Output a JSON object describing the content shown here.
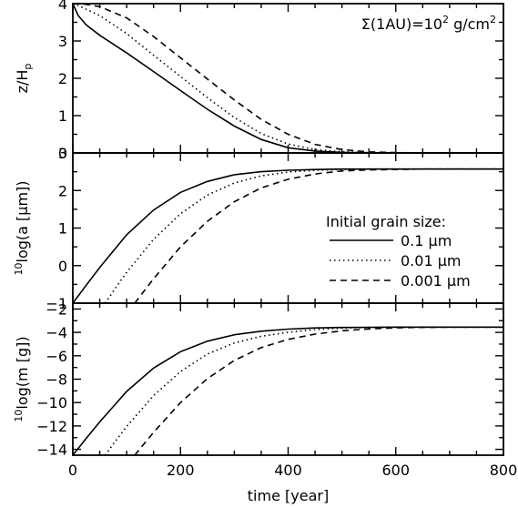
{
  "chart_data": [
    {
      "type": "line",
      "panel": "top",
      "ylabel": "z/H_p",
      "ylabel_main": "z/H",
      "ylabel_sub": "p",
      "xlim": [
        0,
        800
      ],
      "ylim": [
        0,
        4
      ],
      "yticks": [
        0,
        1,
        2,
        3,
        4
      ],
      "xticks": [
        0,
        200,
        400,
        600,
        800
      ],
      "show_xtick_labels": false,
      "annotation": {
        "prefix": "Σ(1AU)=10",
        "exp": "2",
        "mid": " g/cm",
        "unit_exp": "2"
      },
      "series": [
        {
          "name": "0.1 μm",
          "style": "solid",
          "x": [
            0,
            10,
            25,
            50,
            100,
            150,
            200,
            250,
            300,
            350,
            400,
            450,
            500,
            550,
            600,
            650,
            700,
            800
          ],
          "values": [
            4.0,
            3.68,
            3.43,
            3.15,
            2.68,
            2.18,
            1.67,
            1.17,
            0.72,
            0.36,
            0.14,
            0.05,
            0.015,
            0.005,
            0.0,
            0.0,
            0.0,
            0.0
          ]
        },
        {
          "name": "0.01 μm",
          "style": "dotted",
          "x": [
            0,
            10,
            25,
            50,
            100,
            150,
            200,
            250,
            300,
            350,
            400,
            450,
            500,
            550,
            600,
            650,
            700,
            800
          ],
          "values": [
            4.0,
            3.95,
            3.85,
            3.68,
            3.2,
            2.62,
            2.05,
            1.48,
            0.95,
            0.52,
            0.24,
            0.09,
            0.03,
            0.01,
            0.0,
            0.0,
            0.0,
            0.0
          ]
        },
        {
          "name": "0.001 μm",
          "style": "dashed",
          "x": [
            0,
            10,
            25,
            50,
            100,
            150,
            200,
            250,
            300,
            350,
            400,
            450,
            500,
            550,
            600,
            650,
            700,
            800
          ],
          "values": [
            4.0,
            4.0,
            3.98,
            3.92,
            3.62,
            3.12,
            2.55,
            1.98,
            1.42,
            0.9,
            0.5,
            0.23,
            0.09,
            0.03,
            0.01,
            0.0,
            0.0,
            0.0
          ]
        }
      ]
    },
    {
      "type": "line",
      "panel": "middle",
      "ylabel": "10log(a [μm])",
      "ylabel_pre": "10",
      "ylabel_main": "log(a [μm])",
      "xlim": [
        0,
        800
      ],
      "ylim": [
        -1,
        3
      ],
      "yticks": [
        -1,
        0,
        1,
        2,
        3
      ],
      "xticks": [
        0,
        200,
        400,
        600,
        800
      ],
      "show_xtick_labels": false,
      "legend": {
        "title": "Initial grain size:",
        "placement": "middle-right",
        "entries": [
          {
            "label": "0.1 μm",
            "style": "solid"
          },
          {
            "label": "0.01 μm",
            "style": "dotted"
          },
          {
            "label": "0.001 μm",
            "style": "dashed"
          }
        ]
      },
      "series": [
        {
          "name": "0.1 μm",
          "style": "solid",
          "x": [
            0,
            25,
            50,
            100,
            150,
            200,
            250,
            300,
            350,
            400,
            450,
            500,
            550,
            600,
            650,
            700,
            800
          ],
          "values": [
            -1.0,
            -0.52,
            -0.05,
            0.82,
            1.48,
            1.95,
            2.24,
            2.42,
            2.5,
            2.54,
            2.56,
            2.57,
            2.57,
            2.57,
            2.57,
            2.57,
            2.57
          ]
        },
        {
          "name": "0.01 μm",
          "style": "dotted",
          "x": [
            60,
            80,
            100,
            150,
            200,
            250,
            300,
            350,
            400,
            450,
            500,
            550,
            600,
            650,
            700,
            800
          ],
          "values": [
            -1.0,
            -0.58,
            -0.18,
            0.7,
            1.38,
            1.88,
            2.2,
            2.39,
            2.49,
            2.54,
            2.56,
            2.57,
            2.57,
            2.57,
            2.57,
            2.57
          ]
        },
        {
          "name": "0.001 μm",
          "style": "dashed",
          "x": [
            115,
            130,
            150,
            200,
            250,
            300,
            350,
            400,
            450,
            500,
            550,
            600,
            650,
            700,
            800
          ],
          "values": [
            -1.0,
            -0.72,
            -0.35,
            0.5,
            1.18,
            1.7,
            2.07,
            2.3,
            2.44,
            2.52,
            2.55,
            2.56,
            2.57,
            2.57,
            2.57
          ]
        }
      ]
    },
    {
      "type": "line",
      "panel": "bottom",
      "ylabel": "10log(m [g])",
      "ylabel_pre": "10",
      "ylabel_main": "log(m [g])",
      "xlabel": "time [year]",
      "xlim": [
        0,
        800
      ],
      "ylim": [
        -14.5,
        -1.5
      ],
      "yticks": [
        -14,
        -12,
        -10,
        -8,
        -6,
        -4,
        -2
      ],
      "xticks": [
        0,
        200,
        400,
        600,
        800
      ],
      "show_xtick_labels": true,
      "series": [
        {
          "name": "0.1 μm",
          "style": "solid",
          "x": [
            0,
            25,
            50,
            100,
            150,
            200,
            250,
            300,
            350,
            400,
            450,
            500,
            550,
            600,
            650,
            700,
            800
          ],
          "values": [
            -14.5,
            -13.05,
            -11.65,
            -9.05,
            -7.05,
            -5.65,
            -4.75,
            -4.2,
            -3.9,
            -3.72,
            -3.62,
            -3.58,
            -3.56,
            -3.55,
            -3.55,
            -3.55,
            -3.55
          ]
        },
        {
          "name": "0.01 μm",
          "style": "dotted",
          "x": [
            60,
            80,
            100,
            150,
            200,
            250,
            300,
            350,
            400,
            450,
            500,
            550,
            600,
            650,
            700,
            800
          ],
          "values": [
            -14.5,
            -13.25,
            -12.05,
            -9.4,
            -7.35,
            -5.85,
            -4.9,
            -4.33,
            -3.98,
            -3.76,
            -3.64,
            -3.58,
            -3.56,
            -3.55,
            -3.55,
            -3.55
          ]
        },
        {
          "name": "0.001 μm",
          "style": "dashed",
          "x": [
            115,
            130,
            150,
            200,
            250,
            300,
            350,
            400,
            450,
            500,
            550,
            600,
            650,
            700,
            800
          ],
          "values": [
            -14.5,
            -13.65,
            -12.55,
            -10.0,
            -7.95,
            -6.4,
            -5.3,
            -4.6,
            -4.15,
            -3.87,
            -3.7,
            -3.61,
            -3.57,
            -3.55,
            -3.55
          ]
        }
      ]
    }
  ]
}
